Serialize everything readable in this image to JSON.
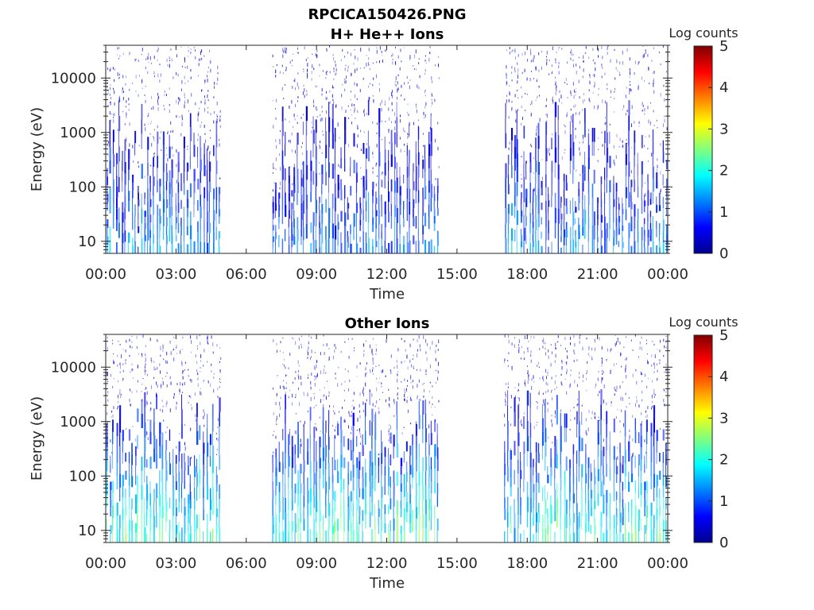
{
  "figure_title": "RPCICA150426.PNG",
  "colors": {
    "colormap": [
      "#00008f",
      "#0000ff",
      "#00ffff",
      "#ffff00",
      "#ff0000",
      "#800000"
    ],
    "axes": "#262626"
  },
  "chart_data": [
    {
      "type": "heatmap",
      "title": "H+ He++ Ions",
      "xlabel": "Time",
      "ylabel": "Energy (eV)",
      "yscale": "log",
      "ylim": [
        6,
        40000
      ],
      "xlim": [
        "00:00",
        "24:00"
      ],
      "x_ticks": [
        "00:00",
        "03:00",
        "06:00",
        "09:00",
        "12:00",
        "15:00",
        "18:00",
        "21:00",
        "00:00"
      ],
      "y_ticks": [
        "10",
        "100",
        "1000",
        "10000"
      ],
      "colorbar": {
        "label": "Log counts",
        "range": [
          0,
          5
        ],
        "ticks": [
          "0",
          "1",
          "2",
          "3",
          "4",
          "5"
        ]
      },
      "grid": false,
      "data_segments": [
        {
          "start": "00:00",
          "end": "04:55"
        },
        {
          "start": "07:05",
          "end": "14:15"
        },
        {
          "start": "17:00",
          "end": "24:00"
        }
      ]
    },
    {
      "type": "heatmap",
      "title": "Other Ions",
      "xlabel": "Time",
      "ylabel": "Energy (eV)",
      "yscale": "log",
      "ylim": [
        6,
        40000
      ],
      "xlim": [
        "00:00",
        "24:00"
      ],
      "x_ticks": [
        "00:00",
        "03:00",
        "06:00",
        "09:00",
        "12:00",
        "15:00",
        "18:00",
        "21:00",
        "00:00"
      ],
      "y_ticks": [
        "10",
        "100",
        "1000",
        "10000"
      ],
      "colorbar": {
        "label": "Log counts",
        "range": [
          0,
          5
        ],
        "ticks": [
          "0",
          "1",
          "2",
          "3",
          "4",
          "5"
        ]
      },
      "grid": false,
      "data_segments": [
        {
          "start": "00:00",
          "end": "04:55"
        },
        {
          "start": "07:05",
          "end": "14:15"
        },
        {
          "start": "17:00",
          "end": "24:00"
        }
      ]
    }
  ]
}
